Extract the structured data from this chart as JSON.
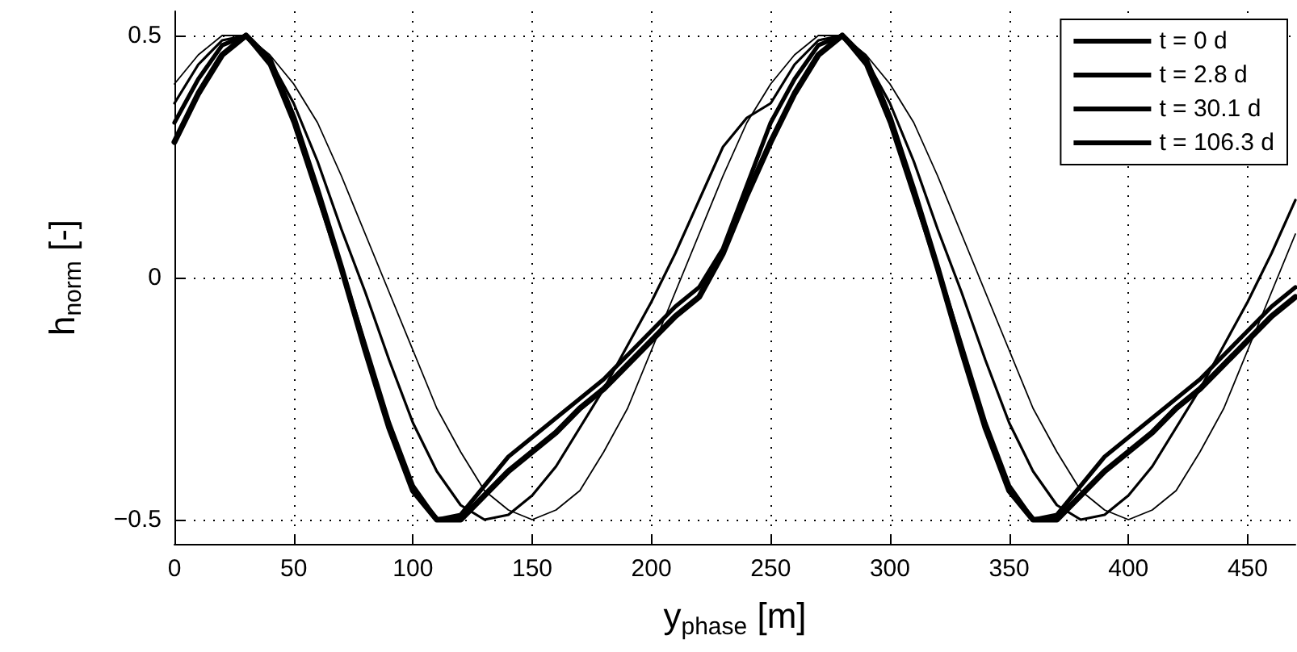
{
  "chart_data": {
    "type": "line",
    "xlabel": "y$_{phase}$ [m]",
    "ylabel": "h$_{norm}$ [-]",
    "x": [
      0,
      10,
      20,
      30,
      40,
      50,
      60,
      70,
      80,
      90,
      100,
      110,
      120,
      130,
      140,
      150,
      160,
      170,
      180,
      190,
      200,
      210,
      220,
      230,
      240,
      250,
      260,
      270,
      280,
      290,
      300,
      310,
      320,
      330,
      340,
      350,
      360,
      370,
      380,
      390,
      400,
      410,
      420,
      430,
      440,
      450,
      460,
      470
    ],
    "series": [
      {
        "name": "t = 0 d",
        "color": "#000000",
        "values": [
          0.4,
          0.46,
          0.5,
          0.5,
          0.46,
          0.4,
          0.32,
          0.21,
          0.09,
          -0.03,
          -0.15,
          -0.27,
          -0.36,
          -0.44,
          -0.48,
          -0.5,
          -0.48,
          -0.44,
          -0.36,
          -0.27,
          -0.15,
          -0.03,
          0.09,
          0.21,
          0.32,
          0.4,
          0.46,
          0.5,
          0.5,
          0.46,
          0.4,
          0.32,
          0.21,
          0.09,
          -0.03,
          -0.15,
          -0.27,
          -0.36,
          -0.44,
          -0.48,
          -0.5,
          -0.48,
          -0.44,
          -0.36,
          -0.27,
          -0.15,
          -0.03,
          0.09
        ]
      },
      {
        "name": "t = 2.8 d",
        "color": "#000000",
        "values": [
          0.36,
          0.44,
          0.49,
          0.5,
          0.45,
          0.36,
          0.24,
          0.1,
          -0.03,
          -0.17,
          -0.3,
          -0.4,
          -0.47,
          -0.5,
          -0.49,
          -0.45,
          -0.39,
          -0.31,
          -0.23,
          -0.14,
          -0.05,
          0.05,
          0.16,
          0.27,
          0.33,
          0.36,
          0.44,
          0.49,
          0.5,
          0.45,
          0.36,
          0.24,
          0.1,
          -0.03,
          -0.17,
          -0.3,
          -0.4,
          -0.47,
          -0.5,
          -0.49,
          -0.45,
          -0.39,
          -0.31,
          -0.23,
          -0.14,
          -0.05,
          0.05,
          0.16
        ]
      },
      {
        "name": "t = 30.1 d",
        "color": "#000000",
        "values": [
          0.32,
          0.41,
          0.48,
          0.5,
          0.44,
          0.32,
          0.17,
          0.02,
          -0.14,
          -0.3,
          -0.43,
          -0.5,
          -0.49,
          -0.43,
          -0.37,
          -0.33,
          -0.29,
          -0.25,
          -0.21,
          -0.16,
          -0.11,
          -0.06,
          -0.02,
          0.06,
          0.19,
          0.32,
          0.41,
          0.48,
          0.5,
          0.44,
          0.32,
          0.17,
          0.02,
          -0.14,
          -0.3,
          -0.43,
          -0.5,
          -0.49,
          -0.43,
          -0.37,
          -0.33,
          -0.29,
          -0.25,
          -0.21,
          -0.16,
          -0.11,
          -0.06,
          -0.02
        ]
      },
      {
        "name": "t = 106.3 d",
        "color": "#000000",
        "values": [
          0.28,
          0.38,
          0.46,
          0.5,
          0.45,
          0.33,
          0.18,
          0.02,
          -0.15,
          -0.31,
          -0.44,
          -0.5,
          -0.5,
          -0.45,
          -0.4,
          -0.36,
          -0.32,
          -0.27,
          -0.23,
          -0.18,
          -0.13,
          -0.08,
          -0.04,
          0.05,
          0.17,
          0.28,
          0.38,
          0.46,
          0.5,
          0.45,
          0.33,
          0.18,
          0.02,
          -0.15,
          -0.31,
          -0.44,
          -0.5,
          -0.5,
          -0.45,
          -0.4,
          -0.36,
          -0.32,
          -0.27,
          -0.23,
          -0.18,
          -0.13,
          -0.08,
          -0.04
        ]
      }
    ],
    "xlim": [
      0,
      470
    ],
    "xticks": [
      0,
      50,
      100,
      150,
      200,
      250,
      300,
      350,
      400,
      450
    ],
    "ylim": [
      -0.55,
      0.55
    ],
    "yticks": [
      -0.5,
      0,
      0.5
    ],
    "grid": true,
    "legend": "top right",
    "marker": "none",
    "line_style": "solid"
  }
}
